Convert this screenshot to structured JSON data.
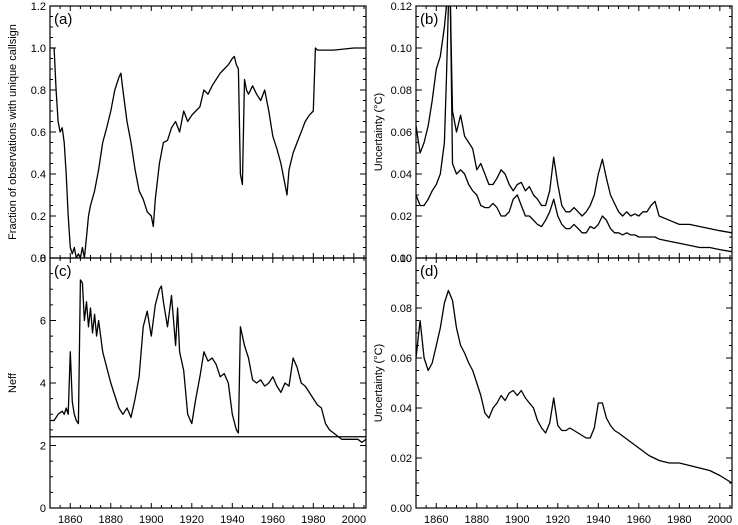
{
  "chart_data": [
    {
      "type": "line",
      "label": "(a)",
      "ylabel": "Fraction of observations with unique callsign",
      "xlim": [
        1850,
        2006
      ],
      "ylim": [
        0,
        1.2
      ],
      "xticks": [
        1860,
        1880,
        1900,
        1920,
        1940,
        1960,
        1980,
        2000
      ],
      "yticks": [
        "0.0",
        "0.2",
        "0.4",
        "0.6",
        "0.8",
        "1.0",
        "1.2"
      ],
      "series": [
        {
          "x": [
            1850,
            1852,
            1853,
            1854,
            1855,
            1856,
            1857,
            1858,
            1859,
            1860,
            1861,
            1862,
            1863,
            1864,
            1865,
            1866,
            1867,
            1868,
            1869,
            1870,
            1872,
            1874,
            1876,
            1878,
            1880,
            1882,
            1884,
            1885,
            1886,
            1888,
            1890,
            1892,
            1894,
            1896,
            1898,
            1900,
            1901,
            1902,
            1904,
            1906,
            1908,
            1910,
            1912,
            1914,
            1916,
            1918,
            1920,
            1922,
            1924,
            1926,
            1928,
            1930,
            1932,
            1934,
            1936,
            1938,
            1940,
            1941,
            1942,
            1943,
            1944,
            1945,
            1946,
            1947,
            1948,
            1950,
            1952,
            1954,
            1956,
            1958,
            1960,
            1962,
            1964,
            1966,
            1967,
            1968,
            1970,
            1972,
            1974,
            1976,
            1978,
            1980,
            1981,
            1982,
            1984,
            1990,
            2000,
            2006
          ],
          "y": [
            1.0,
            1.0,
            0.8,
            0.65,
            0.6,
            0.62,
            0.55,
            0.4,
            0.2,
            0.05,
            0.02,
            0.05,
            0.0,
            0.02,
            0.0,
            0.05,
            0.0,
            0.1,
            0.2,
            0.25,
            0.32,
            0.42,
            0.55,
            0.62,
            0.7,
            0.8,
            0.86,
            0.88,
            0.8,
            0.65,
            0.55,
            0.42,
            0.32,
            0.28,
            0.22,
            0.2,
            0.15,
            0.28,
            0.45,
            0.55,
            0.56,
            0.62,
            0.65,
            0.6,
            0.7,
            0.65,
            0.68,
            0.7,
            0.72,
            0.8,
            0.78,
            0.82,
            0.85,
            0.88,
            0.9,
            0.92,
            0.95,
            0.96,
            0.92,
            0.9,
            0.4,
            0.35,
            0.85,
            0.8,
            0.78,
            0.82,
            0.78,
            0.75,
            0.8,
            0.7,
            0.58,
            0.52,
            0.45,
            0.35,
            0.3,
            0.42,
            0.5,
            0.55,
            0.6,
            0.65,
            0.68,
            0.7,
            1.0,
            0.99,
            0.99,
            0.99,
            1.0,
            1.0
          ]
        }
      ]
    },
    {
      "type": "line",
      "label": "(b)",
      "ylabel": "Uncertainty (°C)",
      "xlim": [
        1850,
        2006
      ],
      "ylim": [
        0,
        0.12
      ],
      "xticks": [
        1860,
        1880,
        1900,
        1920,
        1940,
        1960,
        1980,
        2000
      ],
      "yticks": [
        "0.00",
        "0.02",
        "0.04",
        "0.06",
        "0.08",
        "0.10",
        "0.12"
      ],
      "series": [
        {
          "x": [
            1850,
            1852,
            1854,
            1856,
            1858,
            1860,
            1862,
            1864,
            1865,
            1866,
            1867,
            1868,
            1870,
            1872,
            1874,
            1876,
            1878,
            1880,
            1882,
            1884,
            1886,
            1888,
            1890,
            1892,
            1894,
            1896,
            1898,
            1900,
            1902,
            1904,
            1906,
            1908,
            1910,
            1912,
            1914,
            1916,
            1918,
            1920,
            1922,
            1924,
            1926,
            1928,
            1930,
            1932,
            1934,
            1936,
            1938,
            1940,
            1942,
            1944,
            1946,
            1948,
            1950,
            1952,
            1954,
            1956,
            1958,
            1960,
            1962,
            1964,
            1966,
            1968,
            1970,
            1975,
            1980,
            1985,
            1990,
            1995,
            2000,
            2006
          ],
          "y": [
            0.063,
            0.05,
            0.055,
            0.063,
            0.075,
            0.09,
            0.096,
            0.11,
            0.12,
            0.12,
            0.12,
            0.07,
            0.06,
            0.068,
            0.058,
            0.055,
            0.052,
            0.042,
            0.045,
            0.04,
            0.035,
            0.035,
            0.038,
            0.042,
            0.04,
            0.035,
            0.032,
            0.035,
            0.036,
            0.032,
            0.034,
            0.03,
            0.028,
            0.025,
            0.025,
            0.032,
            0.048,
            0.035,
            0.025,
            0.022,
            0.022,
            0.024,
            0.022,
            0.02,
            0.022,
            0.025,
            0.03,
            0.04,
            0.047,
            0.038,
            0.03,
            0.026,
            0.022,
            0.02,
            0.022,
            0.02,
            0.021,
            0.02,
            0.022,
            0.022,
            0.025,
            0.027,
            0.02,
            0.018,
            0.016,
            0.016,
            0.015,
            0.014,
            0.013,
            0.012
          ]
        },
        {
          "x": [
            1850,
            1852,
            1854,
            1856,
            1858,
            1860,
            1862,
            1864,
            1865,
            1866,
            1867,
            1868,
            1870,
            1872,
            1874,
            1876,
            1878,
            1880,
            1882,
            1884,
            1886,
            1888,
            1890,
            1892,
            1894,
            1896,
            1898,
            1900,
            1902,
            1904,
            1906,
            1908,
            1910,
            1912,
            1914,
            1916,
            1918,
            1920,
            1922,
            1924,
            1926,
            1928,
            1930,
            1932,
            1934,
            1936,
            1938,
            1940,
            1942,
            1944,
            1946,
            1948,
            1950,
            1952,
            1954,
            1956,
            1958,
            1960,
            1962,
            1964,
            1966,
            1968,
            1970,
            1975,
            1980,
            1985,
            1990,
            1995,
            2000,
            2006
          ],
          "y": [
            0.03,
            0.025,
            0.025,
            0.028,
            0.032,
            0.035,
            0.04,
            0.055,
            0.085,
            0.12,
            0.12,
            0.045,
            0.04,
            0.042,
            0.04,
            0.035,
            0.032,
            0.03,
            0.025,
            0.024,
            0.024,
            0.026,
            0.024,
            0.02,
            0.02,
            0.022,
            0.028,
            0.03,
            0.025,
            0.02,
            0.02,
            0.018,
            0.016,
            0.015,
            0.018,
            0.022,
            0.028,
            0.02,
            0.016,
            0.014,
            0.014,
            0.016,
            0.014,
            0.012,
            0.012,
            0.015,
            0.014,
            0.016,
            0.02,
            0.018,
            0.014,
            0.012,
            0.012,
            0.011,
            0.012,
            0.011,
            0.011,
            0.01,
            0.01,
            0.01,
            0.01,
            0.01,
            0.009,
            0.008,
            0.007,
            0.006,
            0.005,
            0.005,
            0.004,
            0.003
          ]
        }
      ]
    },
    {
      "type": "line",
      "label": "(c)",
      "ylabel": "Neff",
      "xlim": [
        1850,
        2006
      ],
      "ylim": [
        0,
        8
      ],
      "xticks": [
        1860,
        1880,
        1900,
        1920,
        1940,
        1960,
        1980,
        2000
      ],
      "yticks": [
        "0",
        "2",
        "4",
        "6",
        "8"
      ],
      "hline": 2.28,
      "series": [
        {
          "x": [
            1850,
            1852,
            1854,
            1856,
            1857,
            1858,
            1859,
            1860,
            1861,
            1862,
            1863,
            1864,
            1865,
            1866,
            1867,
            1868,
            1869,
            1870,
            1871,
            1872,
            1873,
            1874,
            1876,
            1878,
            1880,
            1882,
            1884,
            1886,
            1888,
            1890,
            1892,
            1894,
            1896,
            1898,
            1900,
            1902,
            1904,
            1905,
            1906,
            1908,
            1910,
            1912,
            1913,
            1914,
            1916,
            1918,
            1920,
            1922,
            1924,
            1926,
            1928,
            1930,
            1932,
            1934,
            1936,
            1938,
            1940,
            1942,
            1943,
            1944,
            1946,
            1948,
            1950,
            1952,
            1954,
            1956,
            1958,
            1960,
            1962,
            1964,
            1966,
            1968,
            1970,
            1972,
            1974,
            1976,
            1978,
            1980,
            1982,
            1984,
            1986,
            1988,
            1990,
            1992,
            1994,
            1996,
            1998,
            2000,
            2002,
            2004,
            2006
          ],
          "y": [
            2.8,
            2.8,
            3.0,
            3.1,
            3.0,
            3.2,
            3.0,
            5.0,
            3.4,
            3.0,
            2.8,
            2.7,
            7.3,
            7.2,
            6.0,
            6.6,
            5.8,
            6.4,
            5.6,
            6.2,
            5.5,
            6.0,
            5.0,
            4.5,
            4.0,
            3.6,
            3.2,
            3.0,
            3.2,
            2.9,
            3.5,
            4.2,
            5.8,
            6.3,
            5.5,
            6.5,
            7.0,
            7.1,
            6.6,
            5.8,
            6.8,
            5.2,
            6.4,
            5.0,
            4.4,
            3.0,
            2.7,
            3.5,
            4.2,
            5.0,
            4.7,
            4.8,
            4.6,
            4.2,
            4.3,
            4.0,
            3.0,
            2.5,
            2.4,
            5.8,
            5.2,
            4.8,
            4.1,
            4.0,
            4.1,
            3.9,
            4.0,
            4.2,
            3.9,
            3.7,
            4.0,
            3.9,
            4.8,
            4.5,
            4.0,
            3.9,
            3.7,
            3.5,
            3.3,
            3.2,
            2.7,
            2.5,
            2.4,
            2.3,
            2.2,
            2.2,
            2.2,
            2.2,
            2.2,
            2.1,
            2.2
          ]
        }
      ]
    },
    {
      "type": "line",
      "label": "(d)",
      "ylabel": "Uncertainty (°C)",
      "xlim": [
        1850,
        2006
      ],
      "ylim": [
        0,
        0.1
      ],
      "xticks": [
        1860,
        1880,
        1900,
        1920,
        1940,
        1960,
        1980,
        2000
      ],
      "yticks": [
        "0.00",
        "0.02",
        "0.04",
        "0.06",
        "0.08",
        "0.10"
      ],
      "series": [
        {
          "x": [
            1850,
            1852,
            1854,
            1856,
            1858,
            1860,
            1862,
            1864,
            1866,
            1868,
            1870,
            1872,
            1874,
            1876,
            1878,
            1880,
            1882,
            1884,
            1886,
            1888,
            1890,
            1892,
            1894,
            1896,
            1898,
            1900,
            1902,
            1904,
            1906,
            1908,
            1910,
            1912,
            1914,
            1916,
            1918,
            1920,
            1922,
            1924,
            1926,
            1928,
            1930,
            1932,
            1934,
            1936,
            1938,
            1940,
            1942,
            1944,
            1946,
            1948,
            1950,
            1955,
            1960,
            1965,
            1970,
            1975,
            1980,
            1985,
            1990,
            1995,
            2000,
            2006
          ],
          "y": [
            0.06,
            0.075,
            0.06,
            0.055,
            0.058,
            0.065,
            0.072,
            0.082,
            0.087,
            0.083,
            0.072,
            0.065,
            0.062,
            0.058,
            0.055,
            0.05,
            0.045,
            0.038,
            0.036,
            0.04,
            0.042,
            0.045,
            0.043,
            0.046,
            0.047,
            0.045,
            0.047,
            0.044,
            0.042,
            0.04,
            0.035,
            0.032,
            0.03,
            0.034,
            0.044,
            0.033,
            0.031,
            0.031,
            0.032,
            0.031,
            0.03,
            0.029,
            0.028,
            0.028,
            0.032,
            0.042,
            0.042,
            0.036,
            0.033,
            0.031,
            0.03,
            0.027,
            0.024,
            0.021,
            0.019,
            0.018,
            0.018,
            0.017,
            0.016,
            0.015,
            0.013,
            0.01
          ]
        }
      ]
    }
  ]
}
